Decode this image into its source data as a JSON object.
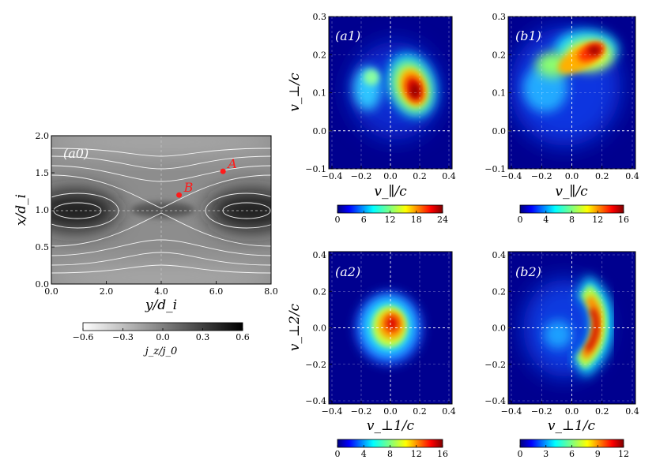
{
  "panel_a0": {
    "label": "(a0)",
    "xlabel": "y/d_i",
    "ylabel": "x/d_i",
    "xticks": [
      "0.0",
      "2.0",
      "4.0",
      "6.0",
      "8.0"
    ],
    "yticks": [
      "0.0",
      "0.5",
      "1.0",
      "1.5",
      "2.0"
    ],
    "xlim": [
      0,
      8
    ],
    "ylim": [
      0,
      2
    ],
    "point_A": {
      "label": "A",
      "y": 6.25,
      "x": 1.52
    },
    "point_B": {
      "label": "B",
      "y": 4.65,
      "x": 1.2
    },
    "colorbar": {
      "ticks": [
        "−0.6",
        "−0.3",
        "0.0",
        "0.3",
        "0.6"
      ],
      "label": "j_z/j_0",
      "range": [
        -0.6,
        0.6
      ]
    }
  },
  "panel_a1": {
    "label": "(a1)",
    "xlabel": "v_∥/c",
    "ylabel": "v_⊥/c",
    "xticks": [
      "−0.4",
      "−0.2",
      "0.0",
      "0.2",
      "0.4"
    ],
    "yticks": [
      "−0.1",
      "0.0",
      "0.1",
      "0.2",
      "0.3"
    ],
    "colorbar_ticks": [
      "0",
      "6",
      "12",
      "18",
      "24"
    ]
  },
  "panel_b1": {
    "label": "(b1)",
    "xlabel": "v_∥/c",
    "xticks": [
      "−0.4",
      "−0.2",
      "0.0",
      "0.2",
      "0.4"
    ],
    "yticks": [
      "−0.1",
      "0.0",
      "0.1",
      "0.2",
      "0.3"
    ],
    "colorbar_ticks": [
      "0",
      "4",
      "8",
      "12",
      "16"
    ]
  },
  "panel_a2": {
    "label": "(a2)",
    "xlabel": "v_⊥1/c",
    "ylabel": "v_⊥2/c",
    "xticks": [
      "−0.4",
      "−0.2",
      "0.0",
      "0.2",
      "0.4"
    ],
    "yticks": [
      "−0.4",
      "−0.2",
      "0.0",
      "0.2",
      "0.4"
    ],
    "colorbar_ticks": [
      "0",
      "4",
      "8",
      "12",
      "16"
    ]
  },
  "panel_b2": {
    "label": "(b2)",
    "xlabel": "v_⊥1/c",
    "xticks": [
      "−0.4",
      "−0.2",
      "0.0",
      "0.2",
      "0.4"
    ],
    "yticks": [
      "−0.4",
      "−0.2",
      "0.0",
      "0.2",
      "0.4"
    ],
    "colorbar_ticks": [
      "0",
      "3",
      "6",
      "9",
      "12"
    ]
  },
  "chart_data": [
    {
      "type": "heatmap",
      "panel": "(a0)",
      "description_quantity": "j_z/j_0",
      "xlabel": "y/d_i",
      "ylabel": "x/d_i",
      "xlim": [
        0,
        8
      ],
      "ylim": [
        0,
        2
      ],
      "clim": [
        -0.6,
        0.6
      ],
      "colormap": "gray_r",
      "annotations": [
        {
          "label": "A",
          "y": 6.25,
          "x": 1.52
        },
        {
          "label": "B",
          "y": 4.65,
          "x": 1.2
        }
      ]
    },
    {
      "type": "heatmap",
      "panel": "(a1)",
      "xlabel": "v_∥/c",
      "ylabel": "v_⊥/c",
      "xlim": [
        -0.42,
        0.42
      ],
      "ylim": [
        -0.1,
        0.3
      ],
      "clim": [
        0,
        24
      ],
      "peaks": [
        {
          "vx": 0.15,
          "vy": 0.11,
          "value": 24
        },
        {
          "vx": -0.15,
          "vy": 0.12,
          "value": 6
        }
      ]
    },
    {
      "type": "heatmap",
      "panel": "(b1)",
      "xlabel": "v_∥/c",
      "ylabel": "v_⊥/c",
      "xlim": [
        -0.42,
        0.42
      ],
      "ylim": [
        -0.1,
        0.3
      ],
      "clim": [
        0,
        16
      ],
      "peaks": [
        {
          "vx": 0.14,
          "vy": 0.2,
          "value": 16
        },
        {
          "vx": -0.05,
          "vy": 0.16,
          "value": 10
        }
      ]
    },
    {
      "type": "heatmap",
      "panel": "(a2)",
      "xlabel": "v_⊥1/c",
      "ylabel": "v_⊥2/c",
      "xlim": [
        -0.42,
        0.42
      ],
      "ylim": [
        -0.42,
        0.42
      ],
      "clim": [
        0,
        16
      ],
      "peaks": [
        {
          "vx": 0.02,
          "vy": 0.0,
          "value": 16
        }
      ]
    },
    {
      "type": "heatmap",
      "panel": "(b2)",
      "xlabel": "v_⊥1/c",
      "ylabel": "v_⊥2/c",
      "xlim": [
        -0.42,
        0.42
      ],
      "ylim": [
        -0.42,
        0.42
      ],
      "clim": [
        0,
        12
      ],
      "peaks": [
        {
          "vx": 0.16,
          "vy": 0.0,
          "value": 12
        }
      ]
    }
  ]
}
